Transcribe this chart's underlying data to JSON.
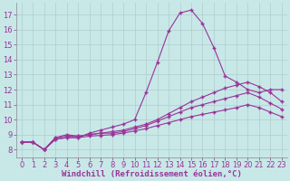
{
  "background_color": "#c8e8e8",
  "line_color": "#993399",
  "grid_color": "#b0cccc",
  "xlabel": "Windchill (Refroidissement éolien,°C)",
  "xlabel_fontsize": 6.5,
  "tick_fontsize": 6,
  "xlim": [
    -0.5,
    23.5
  ],
  "ylim": [
    7.5,
    17.8
  ],
  "yticks": [
    8,
    9,
    10,
    11,
    12,
    13,
    14,
    15,
    16,
    17
  ],
  "xticks": [
    0,
    1,
    2,
    3,
    4,
    5,
    6,
    7,
    8,
    9,
    10,
    11,
    12,
    13,
    14,
    15,
    16,
    17,
    18,
    19,
    20,
    21,
    22,
    23
  ],
  "line1_x": [
    0,
    1,
    2,
    3,
    4,
    5,
    6,
    7,
    8,
    9,
    10,
    11,
    12,
    13,
    14,
    15,
    16,
    17,
    18,
    19,
    20,
    21,
    22,
    23
  ],
  "line1_y": [
    8.5,
    8.5,
    8.0,
    8.7,
    8.8,
    8.8,
    9.1,
    9.3,
    9.5,
    9.7,
    10.0,
    11.8,
    13.8,
    15.9,
    17.1,
    17.3,
    16.4,
    14.8,
    12.9,
    12.5,
    12.0,
    11.8,
    12.0,
    12.0
  ],
  "line2_x": [
    0,
    1,
    2,
    3,
    4,
    5,
    6,
    7,
    8,
    9,
    10,
    11,
    12,
    13,
    14,
    15,
    16,
    17,
    18,
    19,
    20,
    21,
    22,
    23
  ],
  "line2_y": [
    8.5,
    8.5,
    8.0,
    8.8,
    9.0,
    8.9,
    9.0,
    9.1,
    9.2,
    9.3,
    9.5,
    9.7,
    10.0,
    10.4,
    10.8,
    11.2,
    11.5,
    11.8,
    12.1,
    12.3,
    12.5,
    12.2,
    11.8,
    11.2
  ],
  "line3_x": [
    0,
    1,
    2,
    3,
    4,
    5,
    6,
    7,
    8,
    9,
    10,
    11,
    12,
    13,
    14,
    15,
    16,
    17,
    18,
    19,
    20,
    21,
    22,
    23
  ],
  "line3_y": [
    8.5,
    8.5,
    8.0,
    8.8,
    8.9,
    8.9,
    9.0,
    9.1,
    9.1,
    9.2,
    9.4,
    9.6,
    9.9,
    10.2,
    10.5,
    10.8,
    11.0,
    11.2,
    11.4,
    11.6,
    11.8,
    11.5,
    11.1,
    10.7
  ],
  "line4_x": [
    0,
    1,
    2,
    3,
    4,
    5,
    6,
    7,
    8,
    9,
    10,
    11,
    12,
    13,
    14,
    15,
    16,
    17,
    18,
    19,
    20,
    21,
    22,
    23
  ],
  "line4_y": [
    8.5,
    8.5,
    8.0,
    8.7,
    8.8,
    8.8,
    8.9,
    8.95,
    9.0,
    9.1,
    9.25,
    9.4,
    9.6,
    9.8,
    10.0,
    10.2,
    10.35,
    10.5,
    10.65,
    10.8,
    11.0,
    10.8,
    10.5,
    10.2
  ]
}
